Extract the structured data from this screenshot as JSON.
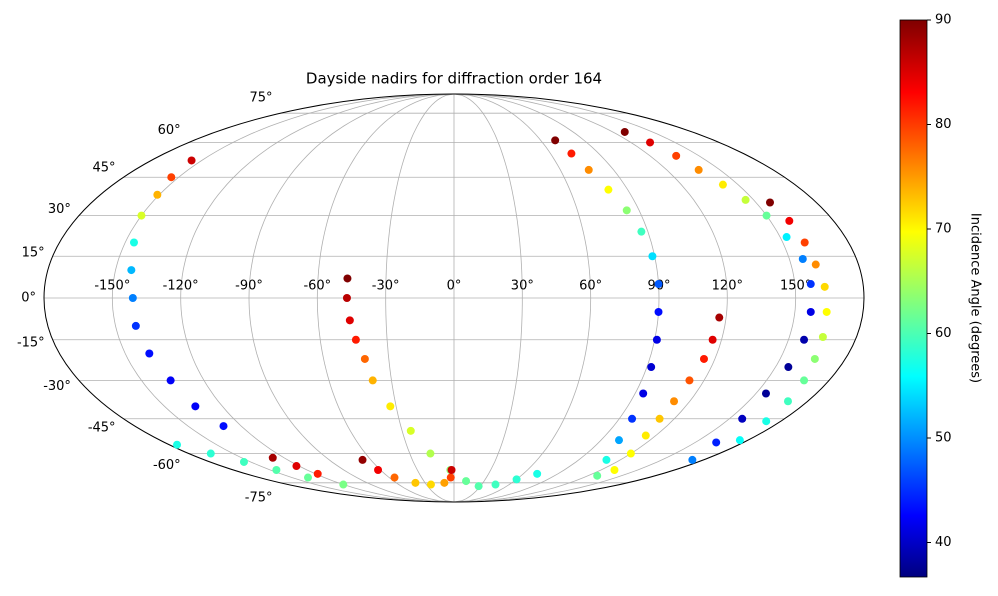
{
  "chart_data": {
    "type": "scatter",
    "projection": "mollweide",
    "title": "Dayside nadirs for diffraction order 164",
    "colorbar_label": "Incidence Angle (degrees)",
    "colormap": "jet",
    "clim": [
      36.7,
      90
    ],
    "cticks": [
      40,
      50,
      60,
      70,
      80,
      90
    ],
    "grid": true,
    "xlim": [
      -180,
      180
    ],
    "ylim": [
      -90,
      90
    ],
    "xticks": [
      {
        "value": -150,
        "label": "-150°"
      },
      {
        "value": -120,
        "label": "-120°"
      },
      {
        "value": -90,
        "label": "-90°"
      },
      {
        "value": -60,
        "label": "-60°"
      },
      {
        "value": -30,
        "label": "-30°"
      },
      {
        "value": 0,
        "label": "0°"
      },
      {
        "value": 30,
        "label": "30°"
      },
      {
        "value": 60,
        "label": "60°"
      },
      {
        "value": 90,
        "label": "90°"
      },
      {
        "value": 120,
        "label": "120°"
      },
      {
        "value": 150,
        "label": "150°"
      }
    ],
    "yticks": [
      {
        "value": -75,
        "label": "-75°"
      },
      {
        "value": -60,
        "label": "-60°"
      },
      {
        "value": -45,
        "label": "-45°"
      },
      {
        "value": -30,
        "label": "-30°"
      },
      {
        "value": -15,
        "label": "-15°"
      },
      {
        "value": 0,
        "label": "0°"
      },
      {
        "value": 15,
        "label": "15°"
      },
      {
        "value": 30,
        "label": "30°"
      },
      {
        "value": 45,
        "label": "45°"
      },
      {
        "value": 60,
        "label": "60°"
      },
      {
        "value": 75,
        "label": "75°"
      }
    ],
    "series": [
      {
        "x": [
          -156,
          -154,
          -151,
          -150,
          -146,
          -143,
          -141,
          -141,
          -139,
          -136,
          -134,
          -130
        ],
        "y": [
          52,
          45,
          38,
          30,
          20,
          10,
          0,
          -10,
          -20,
          -30,
          -40,
          -48
        ],
        "values": [
          86,
          80,
          74,
          68,
          58,
          53,
          50,
          46,
          44,
          43,
          43,
          44
        ]
      },
      {
        "x": [
          -175,
          -165,
          -155,
          -145,
          -135,
          -120
        ],
        "y": [
          -56,
          -60,
          -64,
          -68,
          -72,
          -76
        ],
        "values": [
          58,
          59,
          60,
          61,
          62,
          63
        ]
      },
      {
        "x": [
          -128,
          -122,
          -118
        ],
        "y": [
          -62,
          -66,
          -70
        ],
        "values": [
          88,
          85,
          82
        ]
      },
      {
        "x": [
          -47,
          -47,
          -46,
          -44,
          -41,
          -39,
          -33,
          -25,
          -16,
          -3,
          12,
          28,
          45,
          60,
          72
        ],
        "y": [
          7,
          0,
          -8,
          -15,
          -22,
          -30,
          -40,
          -50,
          -60,
          -68,
          -74,
          -77,
          -76,
          -73,
          -70
        ],
        "values": [
          90,
          87,
          85,
          82,
          78,
          74,
          71,
          68,
          66,
          64,
          62,
          61,
          60,
          59,
          58
        ]
      },
      {
        "x": [
          -66,
          -62,
          -55,
          -40,
          -25,
          -10,
          -3,
          -2
        ],
        "y": [
          -63,
          -68,
          -72,
          -75,
          -76,
          -75,
          -72,
          -68
        ],
        "values": [
          89,
          84,
          78,
          73,
          72,
          75,
          80,
          86
        ]
      },
      {
        "x": [
          70,
          73,
          76,
          80,
          84,
          87,
          89,
          90,
          90,
          91,
          92,
          94,
          97,
          101,
          110,
          128
        ],
        "y": [
          61,
          55,
          48,
          40,
          32,
          24,
          15,
          5,
          -5,
          -15,
          -25,
          -35,
          -45,
          -54,
          -63,
          -71
        ],
        "values": [
          90,
          82,
          76,
          70,
          64,
          60,
          55,
          48,
          44,
          42,
          41,
          42,
          46,
          52,
          58,
          62
        ]
      },
      {
        "x": [
          117,
          116,
          115,
          113,
          112,
          112,
          114,
          120,
          131
        ],
        "y": [
          -7,
          -15,
          -22,
          -30,
          -38,
          -45,
          -52,
          -60,
          -68
        ],
        "values": [
          88,
          85,
          82,
          79,
          76,
          73,
          71,
          70,
          70
        ]
      },
      {
        "x": [
          129,
          133,
          136,
          138,
          142,
          146,
          150,
          153,
          156,
          157,
          157,
          157,
          156,
          155,
          157,
          163,
          172
        ],
        "y": [
          65,
          60,
          54,
          48,
          42,
          36,
          30,
          22,
          14,
          5,
          -5,
          -15,
          -25,
          -35,
          -45,
          -55,
          -63
        ],
        "values": [
          90,
          85,
          80,
          76,
          71,
          67,
          62,
          56,
          50,
          46,
          42,
          39,
          38,
          38,
          40,
          45,
          50
        ]
      },
      {
        "x": [
          157,
          159,
          160,
          161,
          163,
          164,
          165,
          166,
          168,
          170,
          172,
          175
        ],
        "y": [
          35,
          28,
          20,
          12,
          4,
          -5,
          -14,
          -22,
          -30,
          -38,
          -46,
          -54
        ],
        "values": [
          90,
          84,
          80,
          76,
          72,
          70,
          67,
          64,
          62,
          60,
          58,
          57
        ]
      }
    ]
  }
}
